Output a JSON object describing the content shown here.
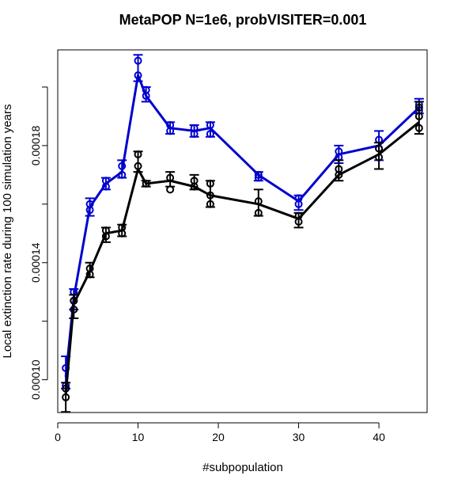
{
  "chart_data": {
    "type": "line",
    "title": "MetaPOP N=1e6, probVISITER=0.001",
    "xlabel": "#subpopulation",
    "ylabel": "Local extinction rate during 100 simulation years",
    "xlim": [
      0,
      46
    ],
    "ylim": [
      8.88e-05,
      0.0002127
    ],
    "x_ticks": [
      0,
      10,
      20,
      30,
      40
    ],
    "y_ticks": [
      0.0001,
      0.00014,
      0.00018
    ],
    "y_tick_labels": [
      "0.00010",
      "0.00014",
      "0.00018"
    ],
    "y_minor_ticks": [
      0.00012,
      0.00016,
      0.0002
    ],
    "grid": false,
    "legend": "none",
    "series": [
      {
        "color": "#0000cd",
        "line_x": [
          1,
          2,
          4,
          6,
          8,
          10,
          11,
          14,
          17,
          19,
          25,
          30,
          35,
          40,
          45
        ],
        "line_y": [
          0.000101,
          0.000128,
          0.000159,
          0.000167,
          0.000171,
          0.000204,
          0.000197,
          0.000186,
          0.000185,
          0.000186,
          0.00017,
          0.000161,
          0.000177,
          0.00018,
          0.000193
        ],
        "error_bars": [
          {
            "x": 1,
            "low": 9.7e-05,
            "high": 0.000108
          },
          {
            "x": 2,
            "low": 0.000124,
            "high": 0.000131
          },
          {
            "x": 4,
            "low": 0.000156,
            "high": 0.000162
          },
          {
            "x": 6,
            "low": 0.000165,
            "high": 0.000169
          },
          {
            "x": 8,
            "low": 0.000169,
            "high": 0.000175
          },
          {
            "x": 10,
            "low": 0.000202,
            "high": 0.000211
          },
          {
            "x": 11,
            "low": 0.000195,
            "high": 0.0002
          },
          {
            "x": 14,
            "low": 0.000184,
            "high": 0.000188
          },
          {
            "x": 17,
            "low": 0.000183,
            "high": 0.000187
          },
          {
            "x": 19,
            "low": 0.000183,
            "high": 0.000188
          },
          {
            "x": 25,
            "low": 0.000168,
            "high": 0.000171
          },
          {
            "x": 30,
            "low": 0.000158,
            "high": 0.000163
          },
          {
            "x": 35,
            "low": 0.000174,
            "high": 0.00018
          },
          {
            "x": 40,
            "low": 0.000175,
            "high": 0.000185
          },
          {
            "x": 45,
            "low": 0.000191,
            "high": 0.000196
          }
        ],
        "points": [
          {
            "x": 1,
            "y": 9.8e-05
          },
          {
            "x": 1,
            "y": 0.000104
          },
          {
            "x": 2,
            "y": 0.000127
          },
          {
            "x": 2,
            "y": 0.00013
          },
          {
            "x": 4,
            "y": 0.000158
          },
          {
            "x": 4,
            "y": 0.00016
          },
          {
            "x": 6,
            "y": 0.000166
          },
          {
            "x": 6,
            "y": 0.000168
          },
          {
            "x": 8,
            "y": 0.00017
          },
          {
            "x": 8,
            "y": 0.000173
          },
          {
            "x": 10,
            "y": 0.000204
          },
          {
            "x": 10,
            "y": 0.000209
          },
          {
            "x": 11,
            "y": 0.000197
          },
          {
            "x": 11,
            "y": 0.000199
          },
          {
            "x": 14,
            "y": 0.000185
          },
          {
            "x": 14,
            "y": 0.000187
          },
          {
            "x": 17,
            "y": 0.000184
          },
          {
            "x": 17,
            "y": 0.000186
          },
          {
            "x": 19,
            "y": 0.000184
          },
          {
            "x": 19,
            "y": 0.000187
          },
          {
            "x": 25,
            "y": 0.000169
          },
          {
            "x": 25,
            "y": 0.00017
          },
          {
            "x": 30,
            "y": 0.00016
          },
          {
            "x": 30,
            "y": 0.000162
          },
          {
            "x": 35,
            "y": 0.000176
          },
          {
            "x": 35,
            "y": 0.000178
          },
          {
            "x": 40,
            "y": 0.000179
          },
          {
            "x": 40,
            "y": 0.000182
          },
          {
            "x": 45,
            "y": 0.000192
          },
          {
            "x": 45,
            "y": 0.000194
          }
        ]
      },
      {
        "color": "#000000",
        "line_x": [
          1,
          2,
          4,
          6,
          8,
          10,
          11,
          14,
          17,
          19,
          25,
          30,
          35,
          40,
          45
        ],
        "line_y": [
          9.5e-05,
          0.000126,
          0.000137,
          0.00015,
          0.000151,
          0.000172,
          0.000167,
          0.000168,
          0.000166,
          0.000163,
          0.00016,
          0.000155,
          0.00017,
          0.000177,
          0.000188
        ],
        "error_bars": [
          {
            "x": 1,
            "low": 8.9e-05,
            "high": 9.9e-05
          },
          {
            "x": 2,
            "low": 0.000121,
            "high": 0.000129
          },
          {
            "x": 4,
            "low": 0.000135,
            "high": 0.00014
          },
          {
            "x": 6,
            "low": 0.000147,
            "high": 0.000152
          },
          {
            "x": 8,
            "low": 0.000149,
            "high": 0.000153
          },
          {
            "x": 10,
            "low": 0.000171,
            "high": 0.000178
          },
          {
            "x": 11,
            "low": 0.000166,
            "high": 0.000168
          },
          {
            "x": 14,
            "low": 0.000166,
            "high": 0.000171
          },
          {
            "x": 17,
            "low": 0.000165,
            "high": 0.00017
          },
          {
            "x": 19,
            "low": 0.000159,
            "high": 0.000168
          },
          {
            "x": 25,
            "low": 0.000156,
            "high": 0.000165
          },
          {
            "x": 30,
            "low": 0.000152,
            "high": 0.000157
          },
          {
            "x": 35,
            "low": 0.000168,
            "high": 0.000175
          },
          {
            "x": 40,
            "low": 0.000172,
            "high": 0.000181
          },
          {
            "x": 45,
            "low": 0.000184,
            "high": 0.000195
          }
        ],
        "points": [
          {
            "x": 1,
            "y": 9.4e-05
          },
          {
            "x": 1,
            "y": 9.7e-05
          },
          {
            "x": 2,
            "y": 0.000124
          },
          {
            "x": 2,
            "y": 0.000127
          },
          {
            "x": 4,
            "y": 0.000136
          },
          {
            "x": 4,
            "y": 0.000138
          },
          {
            "x": 6,
            "y": 0.000149
          },
          {
            "x": 6,
            "y": 0.000151
          },
          {
            "x": 8,
            "y": 0.00015
          },
          {
            "x": 8,
            "y": 0.000152
          },
          {
            "x": 10,
            "y": 0.000173
          },
          {
            "x": 10,
            "y": 0.000177
          },
          {
            "x": 11,
            "y": 0.000167
          },
          {
            "x": 14,
            "y": 0.000165
          },
          {
            "x": 14,
            "y": 0.000169
          },
          {
            "x": 17,
            "y": 0.000166
          },
          {
            "x": 17,
            "y": 0.000168
          },
          {
            "x": 19,
            "y": 0.00016
          },
          {
            "x": 19,
            "y": 0.000163
          },
          {
            "x": 19,
            "y": 0.000167
          },
          {
            "x": 25,
            "y": 0.000157
          },
          {
            "x": 25,
            "y": 0.000161
          },
          {
            "x": 30,
            "y": 0.000154
          },
          {
            "x": 30,
            "y": 0.000156
          },
          {
            "x": 35,
            "y": 0.00017
          },
          {
            "x": 35,
            "y": 0.000172
          },
          {
            "x": 40,
            "y": 0.000176
          },
          {
            "x": 40,
            "y": 0.000179
          },
          {
            "x": 45,
            "y": 0.000186
          },
          {
            "x": 45,
            "y": 0.00019
          },
          {
            "x": 45,
            "y": 0.000193
          }
        ]
      }
    ]
  }
}
